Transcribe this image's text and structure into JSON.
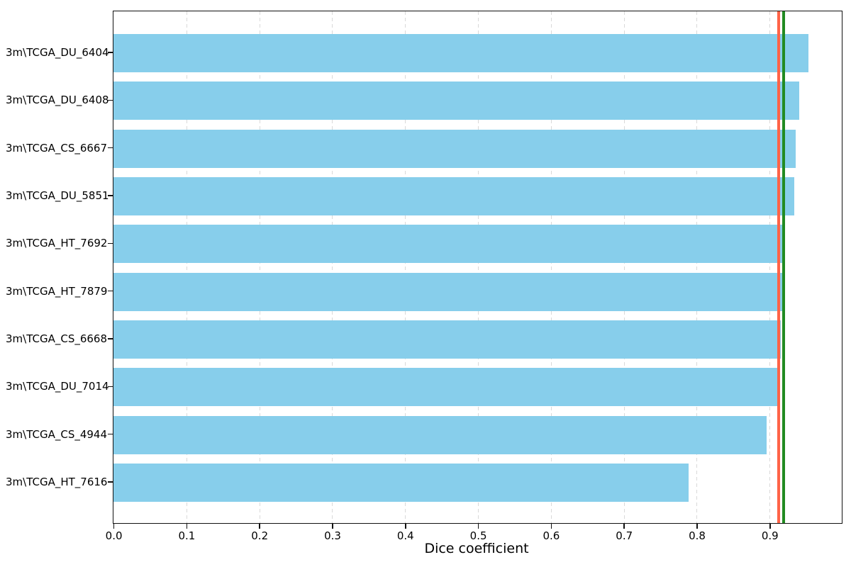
{
  "chart_data": {
    "type": "bar",
    "orientation": "horizontal",
    "title": "",
    "xlabel": "Dice coefficient",
    "ylabel": "",
    "categories": [
      "3m\\TCGA_DU_6404",
      "3m\\TCGA_DU_6408",
      "3m\\TCGA_CS_6667",
      "3m\\TCGA_DU_5851",
      "3m\\TCGA_HT_7692",
      "3m\\TCGA_HT_7879",
      "3m\\TCGA_CS_6668",
      "3m\\TCGA_DU_7014",
      "3m\\TCGA_CS_4944",
      "3m\\TCGA_HT_7616"
    ],
    "values": [
      0.953,
      0.941,
      0.936,
      0.934,
      0.921,
      0.917,
      0.915,
      0.914,
      0.896,
      0.789
    ],
    "x_ticks": [
      0.0,
      0.1,
      0.2,
      0.3,
      0.4,
      0.5,
      0.6,
      0.7,
      0.8,
      0.9
    ],
    "xlim": [
      0,
      0.999
    ],
    "grid": "vertical-dashed",
    "legend_position": "none",
    "bar_color": "#87CEEB",
    "reference_lines": [
      {
        "name": "mean-line",
        "value": 0.912,
        "color": "#FF6347"
      },
      {
        "name": "median-line",
        "value": 0.919,
        "color": "#228B22"
      }
    ],
    "grid_color": "#d9d9d9",
    "spine_color": "#111111"
  }
}
